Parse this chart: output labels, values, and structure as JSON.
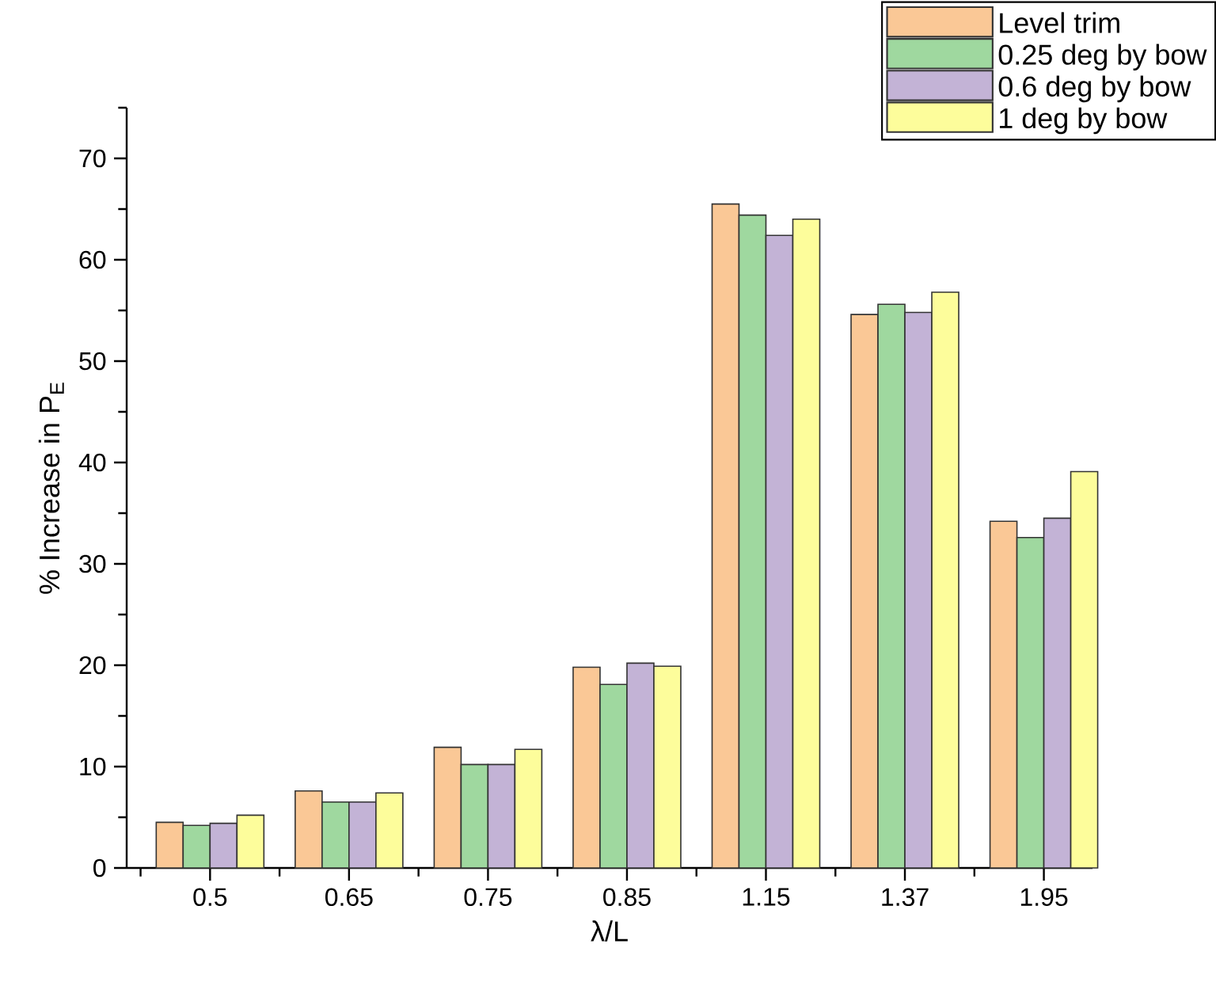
{
  "chart_data": {
    "type": "bar",
    "xlabel": "λ/L",
    "ylabel": "% Increase in P$_{E}$",
    "categories": [
      "0.5",
      "0.65",
      "0.75",
      "0.85",
      "1.15",
      "1.37",
      "1.95"
    ],
    "series": [
      {
        "name": "Level trim",
        "color": "#fac896",
        "values": [
          4.5,
          7.6,
          11.9,
          19.8,
          65.5,
          54.6,
          34.2
        ]
      },
      {
        "name": "0.25 deg by bow",
        "color": "#9fd89f",
        "values": [
          4.2,
          6.5,
          10.2,
          18.1,
          64.4,
          55.6,
          32.6
        ]
      },
      {
        "name": "0.6 deg by bow",
        "color": "#c3b3d6",
        "values": [
          4.4,
          6.5,
          10.2,
          20.2,
          62.4,
          54.8,
          34.5
        ]
      },
      {
        "name": "1 deg by bow",
        "color": "#fdfd9b",
        "values": [
          5.2,
          7.4,
          11.7,
          19.9,
          64.0,
          56.8,
          39.1
        ]
      }
    ],
    "ylim": [
      0,
      75
    ],
    "yticks": [
      0,
      10,
      20,
      30,
      40,
      50,
      60,
      70
    ],
    "legend": "top right"
  }
}
